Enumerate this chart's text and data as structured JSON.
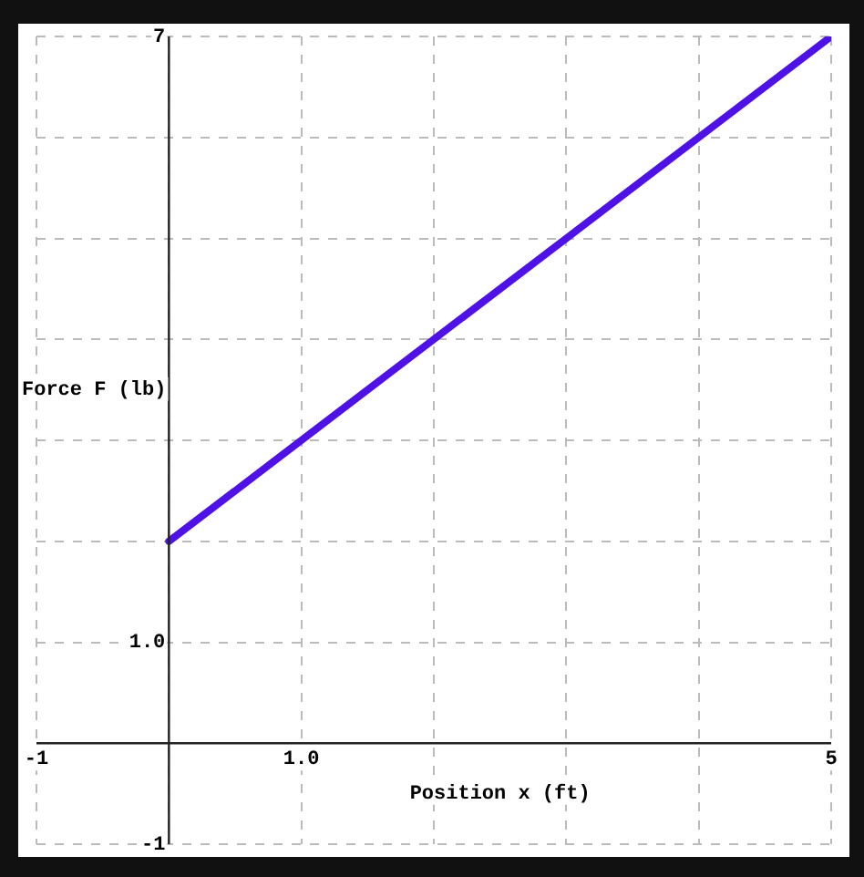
{
  "chart_data": {
    "type": "line",
    "xlabel": "Position x (ft)",
    "ylabel": "Force F (lb)",
    "x": [
      0,
      5
    ],
    "series": [
      {
        "color": "#4f12e6",
        "values": [
          2,
          7
        ]
      }
    ],
    "xlim": [
      -1,
      5
    ],
    "ylim": [
      -1,
      7
    ],
    "xticks": [
      -1,
      {
        "value": 0,
        "label": null
      },
      {
        "value": 1,
        "label": "1.0"
      },
      {
        "value": 2,
        "label": null
      },
      {
        "value": 3,
        "label": null
      },
      {
        "value": 4,
        "label": null
      },
      5
    ],
    "yticks": [
      -1,
      {
        "value": 0,
        "label": null
      },
      {
        "value": 1,
        "label": "1.0"
      },
      {
        "value": 2,
        "label": null
      },
      {
        "value": 3,
        "label": null
      },
      {
        "value": 4,
        "label": null
      },
      {
        "value": 5,
        "label": null
      },
      {
        "value": 6,
        "label": null
      },
      7
    ],
    "grid": true,
    "legend": false,
    "marker": "none",
    "line_style": "solid"
  }
}
